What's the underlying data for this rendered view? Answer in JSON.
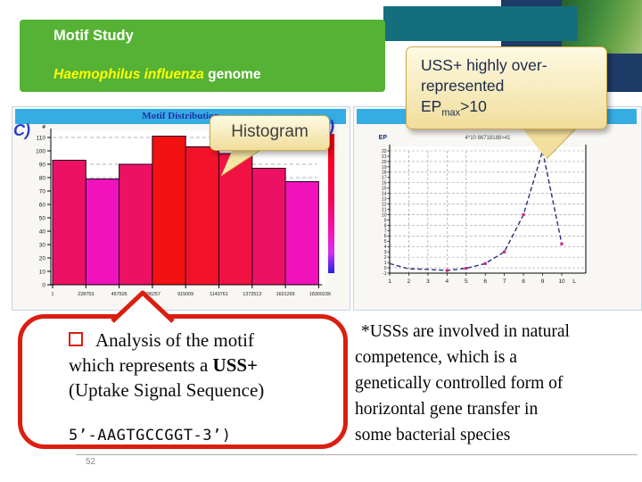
{
  "slide": {
    "page_number": "52"
  },
  "title_box": {
    "title": "Motif Study",
    "subtitle_italic": "Haemophilus influenza",
    "subtitle_rest": " genome",
    "bg_color": "#55B234",
    "title_color": "#FFFFFF",
    "subtitle_color": "#FFFF00"
  },
  "callouts": {
    "histogram": {
      "label": "Histogram"
    },
    "uss": {
      "line1": "USS+ highly over-",
      "line2": "represented",
      "ep": "EP",
      "ep_sub": "max",
      "ep_rest": ">10"
    }
  },
  "bubble": {
    "line1": "Analysis of the motif",
    "line2_pre": "which represents a ",
    "line2_bold": "USS+",
    "line3": "(Uptake Signal Sequence)",
    "sequence": "5’-AAGTGCCGGT-3’)"
  },
  "notes": {
    "lines": [
      "*USSs are involved in natural",
      "competence, which is a",
      "genetically controlled form of",
      "horizontal gene transfer in",
      "some bacterial species"
    ]
  },
  "chart_data": [
    {
      "type": "bar",
      "panel_label": "C)",
      "header": "Motif Distribution",
      "ylabel": "#",
      "ylim": [
        0,
        115
      ],
      "yticks": [
        0,
        10,
        20,
        30,
        40,
        50,
        60,
        70,
        80,
        90,
        100,
        110
      ],
      "categories": [
        "1",
        "228753",
        "457505",
        "686257",
        "915009",
        "1143761",
        "1372513",
        "1601265",
        "1830023"
      ],
      "x_axis_suffix": "X",
      "values": [
        93,
        79,
        90,
        111,
        103,
        98,
        87,
        77
      ],
      "bar_colors": [
        "#ED1164",
        "#F013BC",
        "#ED1164",
        "#F41111",
        "#F4122B",
        "#F01243",
        "#ED1164",
        "#F013BC"
      ],
      "ref_lines": [
        110,
        90,
        80
      ],
      "grid": "dashed-reference-lines",
      "colorbar_colors": [
        "#FF0000",
        "#F2034E",
        "#F513B4",
        "#D530F0",
        "#2222DD"
      ]
    },
    {
      "type": "line",
      "panel_label": "D)",
      "title": "4*10 86718188>41",
      "ylabel": "EP",
      "xlabel": "L",
      "ylim": [
        -1,
        22
      ],
      "x": [
        1,
        2,
        3,
        4,
        5,
        6,
        7,
        8,
        9,
        10
      ],
      "y": [
        0.8,
        -0.2,
        -0.3,
        -0.5,
        -0.1,
        0.8,
        3,
        10,
        22,
        4.5
      ],
      "marker_points": [
        4,
        5,
        6,
        7,
        8,
        9,
        10
      ],
      "line_color": "#2B2F77",
      "marker_color": "#C2298F",
      "grid": "dashed",
      "legend": "none"
    }
  ]
}
